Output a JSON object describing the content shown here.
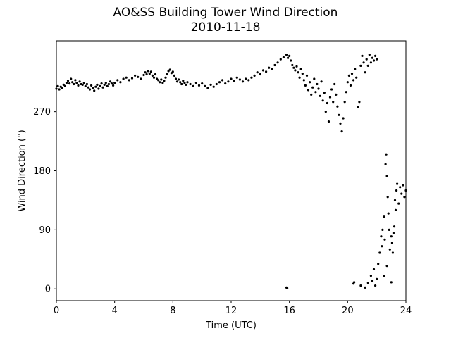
{
  "chart_data": {
    "type": "scatter",
    "title": "AO&SS Building Tower Wind Direction",
    "subtitle": "2010-11-18",
    "xlabel": "Time (UTC)",
    "ylabel": "Wind Direction (°)",
    "xlim": [
      0,
      24
    ],
    "ylim": [
      -18,
      378
    ],
    "xticks": [
      0,
      4,
      8,
      12,
      16,
      20,
      24
    ],
    "yticks": [
      0,
      90,
      180,
      270
    ],
    "grid": false,
    "marker_color": "#000000",
    "series": [
      {
        "points": [
          [
            0.0,
            305
          ],
          [
            0.1,
            309
          ],
          [
            0.2,
            304
          ],
          [
            0.3,
            308
          ],
          [
            0.4,
            306
          ],
          [
            0.5,
            311
          ],
          [
            0.6,
            309
          ],
          [
            0.7,
            314
          ],
          [
            0.8,
            317
          ],
          [
            0.9,
            313
          ],
          [
            1.0,
            320
          ],
          [
            1.1,
            315
          ],
          [
            1.2,
            312
          ],
          [
            1.3,
            318
          ],
          [
            1.4,
            314
          ],
          [
            1.5,
            310
          ],
          [
            1.6,
            316
          ],
          [
            1.7,
            312
          ],
          [
            1.8,
            311
          ],
          [
            1.9,
            314
          ],
          [
            2.0,
            309
          ],
          [
            2.1,
            312
          ],
          [
            2.2,
            307
          ],
          [
            2.3,
            304
          ],
          [
            2.4,
            310
          ],
          [
            2.5,
            306
          ],
          [
            2.6,
            302
          ],
          [
            2.7,
            308
          ],
          [
            2.8,
            311
          ],
          [
            2.9,
            305
          ],
          [
            3.0,
            309
          ],
          [
            3.1,
            313
          ],
          [
            3.2,
            307
          ],
          [
            3.3,
            311
          ],
          [
            3.4,
            314
          ],
          [
            3.5,
            309
          ],
          [
            3.6,
            312
          ],
          [
            3.7,
            316
          ],
          [
            3.8,
            313
          ],
          [
            3.9,
            310
          ],
          [
            4.0,
            314
          ],
          [
            4.2,
            318
          ],
          [
            4.4,
            315
          ],
          [
            4.6,
            320
          ],
          [
            4.8,
            322
          ],
          [
            5.0,
            318
          ],
          [
            5.2,
            321
          ],
          [
            5.4,
            325
          ],
          [
            5.6,
            323
          ],
          [
            5.8,
            320
          ],
          [
            6.0,
            326
          ],
          [
            6.1,
            330
          ],
          [
            6.2,
            327
          ],
          [
            6.3,
            332
          ],
          [
            6.4,
            328
          ],
          [
            6.5,
            331
          ],
          [
            6.6,
            325
          ],
          [
            6.7,
            322
          ],
          [
            6.8,
            327
          ],
          [
            6.9,
            320
          ],
          [
            7.0,
            318
          ],
          [
            7.1,
            315
          ],
          [
            7.2,
            319
          ],
          [
            7.3,
            314
          ],
          [
            7.4,
            317
          ],
          [
            7.5,
            322
          ],
          [
            7.6,
            327
          ],
          [
            7.7,
            332
          ],
          [
            7.8,
            334
          ],
          [
            7.9,
            329
          ],
          [
            8.0,
            331
          ],
          [
            8.1,
            325
          ],
          [
            8.2,
            320
          ],
          [
            8.3,
            316
          ],
          [
            8.4,
            319
          ],
          [
            8.5,
            315
          ],
          [
            8.6,
            312
          ],
          [
            8.7,
            317
          ],
          [
            8.8,
            314
          ],
          [
            8.9,
            311
          ],
          [
            9.0,
            315
          ],
          [
            9.2,
            312
          ],
          [
            9.4,
            309
          ],
          [
            9.6,
            314
          ],
          [
            9.8,
            310
          ],
          [
            10.0,
            313
          ],
          [
            10.2,
            309
          ],
          [
            10.4,
            306
          ],
          [
            10.6,
            311
          ],
          [
            10.8,
            308
          ],
          [
            11.0,
            312
          ],
          [
            11.2,
            315
          ],
          [
            11.4,
            318
          ],
          [
            11.6,
            313
          ],
          [
            11.8,
            316
          ],
          [
            12.0,
            320
          ],
          [
            12.2,
            317
          ],
          [
            12.4,
            322
          ],
          [
            12.6,
            319
          ],
          [
            12.8,
            316
          ],
          [
            13.0,
            320
          ],
          [
            13.2,
            318
          ],
          [
            13.4,
            322
          ],
          [
            13.6,
            325
          ],
          [
            13.8,
            330
          ],
          [
            14.0,
            327
          ],
          [
            14.2,
            333
          ],
          [
            14.4,
            331
          ],
          [
            14.6,
            337
          ],
          [
            14.8,
            335
          ],
          [
            15.0,
            341
          ],
          [
            15.2,
            345
          ],
          [
            15.4,
            350
          ],
          [
            15.6,
            353
          ],
          [
            15.8,
            357
          ],
          [
            15.9,
            352
          ],
          [
            16.0,
            355
          ],
          [
            16.1,
            348
          ],
          [
            16.2,
            341
          ],
          [
            16.3,
            337
          ],
          [
            16.4,
            333
          ],
          [
            16.5,
            339
          ],
          [
            16.6,
            330
          ],
          [
            16.7,
            322
          ],
          [
            16.8,
            335
          ],
          [
            16.9,
            328
          ],
          [
            17.0,
            318
          ],
          [
            17.1,
            310
          ],
          [
            17.2,
            325
          ],
          [
            17.3,
            303
          ],
          [
            17.4,
            315
          ],
          [
            17.5,
            296
          ],
          [
            17.6,
            307
          ],
          [
            17.7,
            320
          ],
          [
            17.8,
            300
          ],
          [
            17.9,
            312
          ],
          [
            18.0,
            305
          ],
          [
            18.1,
            294
          ],
          [
            18.2,
            316
          ],
          [
            18.3,
            287
          ],
          [
            18.4,
            299
          ],
          [
            18.5,
            270
          ],
          [
            18.6,
            283
          ],
          [
            18.7,
            255
          ],
          [
            18.8,
            292
          ],
          [
            18.9,
            304
          ],
          [
            19.0,
            285
          ],
          [
            19.1,
            312
          ],
          [
            19.2,
            296
          ],
          [
            19.3,
            278
          ],
          [
            19.4,
            265
          ],
          [
            19.5,
            252
          ],
          [
            19.6,
            240
          ],
          [
            19.7,
            260
          ],
          [
            19.8,
            285
          ],
          [
            19.9,
            300
          ],
          [
            20.0,
            315
          ],
          [
            20.1,
            325
          ],
          [
            20.2,
            310
          ],
          [
            20.3,
            328
          ],
          [
            20.4,
            318
          ],
          [
            20.5,
            335
          ],
          [
            20.6,
            322
          ],
          [
            20.7,
            277
          ],
          [
            20.8,
            285
          ],
          [
            20.9,
            340
          ],
          [
            21.0,
            355
          ],
          [
            21.1,
            345
          ],
          [
            21.2,
            330
          ],
          [
            21.3,
            350
          ],
          [
            21.4,
            340
          ],
          [
            21.5,
            357
          ],
          [
            21.6,
            345
          ],
          [
            21.7,
            352
          ],
          [
            21.8,
            348
          ],
          [
            21.9,
            355
          ],
          [
            22.0,
            350
          ],
          [
            15.8,
            2
          ],
          [
            15.85,
            1
          ],
          [
            20.4,
            8
          ],
          [
            20.45,
            10
          ],
          [
            20.9,
            5
          ],
          [
            21.2,
            2
          ],
          [
            21.4,
            9
          ],
          [
            21.6,
            20
          ],
          [
            21.7,
            12
          ],
          [
            21.8,
            30
          ],
          [
            21.9,
            5
          ],
          [
            22.0,
            15
          ],
          [
            22.1,
            38
          ],
          [
            22.2,
            55
          ],
          [
            22.3,
            80
          ],
          [
            22.35,
            65
          ],
          [
            22.4,
            90
          ],
          [
            22.5,
            110
          ],
          [
            22.55,
            75
          ],
          [
            22.6,
            190
          ],
          [
            22.65,
            205
          ],
          [
            22.7,
            172
          ],
          [
            22.75,
            140
          ],
          [
            22.8,
            115
          ],
          [
            22.85,
            90
          ],
          [
            22.9,
            60
          ],
          [
            23.0,
            80
          ],
          [
            23.05,
            70
          ],
          [
            23.1,
            55
          ],
          [
            23.15,
            85
          ],
          [
            23.2,
            95
          ],
          [
            23.25,
            135
          ],
          [
            23.3,
            120
          ],
          [
            23.35,
            150
          ],
          [
            23.4,
            160
          ],
          [
            23.5,
            130
          ],
          [
            23.6,
            155
          ],
          [
            23.7,
            145
          ],
          [
            23.8,
            158
          ],
          [
            23.9,
            140
          ],
          [
            24.0,
            150
          ],
          [
            22.5,
            20
          ],
          [
            22.7,
            35
          ],
          [
            23.0,
            10
          ]
        ]
      }
    ]
  }
}
